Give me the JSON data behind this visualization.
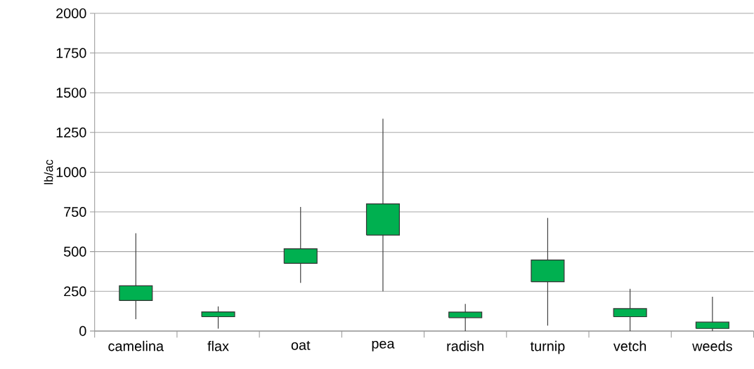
{
  "chart_data": {
    "type": "candlestick",
    "ylabel": "lb/ac",
    "categories": [
      "camelina",
      "flax",
      "oat",
      "pea",
      "radish",
      "turnip",
      "vetch",
      "weeds"
    ],
    "ohlc": [
      [
        192,
        615,
        74,
        285
      ],
      [
        90,
        155,
        15,
        120
      ],
      [
        426,
        781,
        303,
        518
      ],
      [
        604,
        1336,
        250,
        800
      ],
      [
        84,
        171,
        0,
        119
      ],
      [
        310,
        712,
        34,
        447
      ],
      [
        90,
        266,
        0,
        141
      ],
      [
        16,
        216,
        0,
        56
      ]
    ],
    "color": "#00b050",
    "ylim": [
      0,
      2000
    ],
    "yticks": [
      0,
      250,
      500,
      750,
      1000,
      1250,
      1500,
      1750,
      2000
    ],
    "grid": "y"
  }
}
